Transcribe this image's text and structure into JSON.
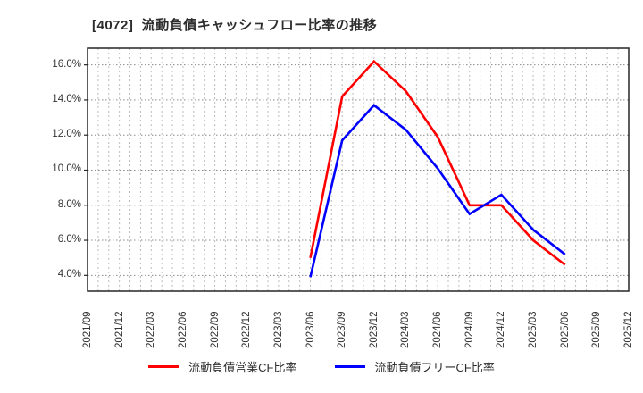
{
  "title": "[4072]  流動負債キャッシュフロー比率の推移",
  "chart_data": {
    "type": "line",
    "title": "[4072]  流動負債キャッシュフロー比率の推移",
    "x_categories": [
      "2021/09",
      "2021/12",
      "2022/03",
      "2022/06",
      "2022/09",
      "2022/12",
      "2023/03",
      "2023/06",
      "2023/09",
      "2023/12",
      "2024/03",
      "2024/06",
      "2024/09",
      "2024/12",
      "2025/03",
      "2025/06",
      "2025/09",
      "2025/12"
    ],
    "series": [
      {
        "name": "流動負債営業CF比率",
        "color": "#ff0000",
        "values": [
          null,
          null,
          null,
          null,
          null,
          null,
          null,
          5.0,
          14.2,
          16.2,
          14.5,
          11.9,
          8.0,
          8.0,
          6.0,
          4.6,
          null,
          null
        ]
      },
      {
        "name": "流動負債フリーCF比率",
        "color": "#0000ff",
        "values": [
          null,
          null,
          null,
          null,
          null,
          null,
          null,
          3.9,
          11.7,
          13.7,
          12.3,
          10.1,
          7.5,
          8.6,
          6.6,
          5.2,
          null,
          null
        ]
      }
    ],
    "y_ticks": [
      {
        "value": 16,
        "label": "16.0%"
      },
      {
        "value": 14,
        "label": "14.0%"
      },
      {
        "value": 12,
        "label": "12.0%"
      },
      {
        "value": 10,
        "label": "10.0%"
      },
      {
        "value": 8,
        "label": "8.0%"
      },
      {
        "value": 6,
        "label": "6.0%"
      },
      {
        "value": 4,
        "label": "4.0%"
      }
    ],
    "ylim": [
      3.1,
      16.95
    ],
    "grid": {
      "horizontal": "major-dotted",
      "vertical": "minor-monthly-dotted",
      "minor_per_interval": 3
    },
    "legend_position": "bottom",
    "colors": {
      "grid_h": "#8a8a8a",
      "grid_v": "#bcbcbc",
      "border": "#262626",
      "text": "#333333"
    }
  },
  "legend": {
    "items": [
      {
        "label": "流動負債営業CF比率"
      },
      {
        "label": "流動負債フリーCF比率"
      }
    ]
  }
}
